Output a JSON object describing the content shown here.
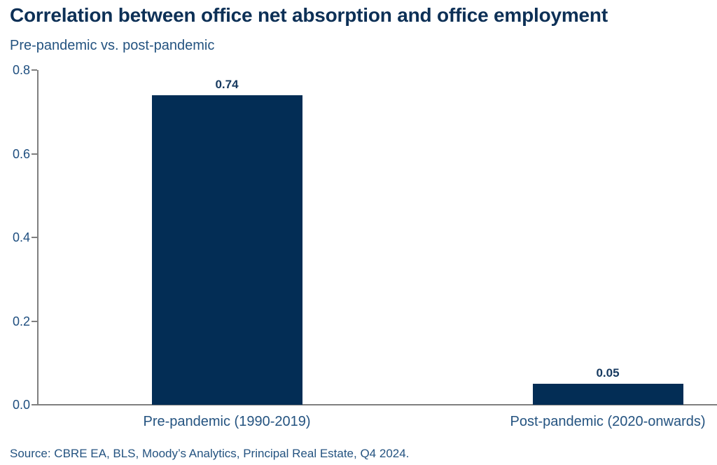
{
  "header": {
    "title": "Correlation between office net absorption and office employment",
    "subtitle": "Pre-pandemic vs. post-pandemic"
  },
  "footer": {
    "source": "Source: CBRE EA, BLS, Moody’s Analytics, Principal Real Estate, Q4 2024."
  },
  "colors": {
    "bar": "#032d55",
    "axis": "#7f7f7f",
    "title_text": "#0d3056",
    "label_text": "#245380",
    "tick_text": "#1e4e7f",
    "value_text": "#16395f"
  },
  "chart_data": {
    "type": "bar",
    "title": "Correlation between office net absorption and office employment",
    "subtitle": "Pre-pandemic vs. post-pandemic",
    "categories": [
      "Pre-pandemic (1990-2019)",
      "Post-pandemic (2020-onwards)"
    ],
    "values": [
      0.74,
      0.05
    ],
    "value_labels": [
      "0.74",
      "0.05"
    ],
    "xlabel": "",
    "ylabel": "",
    "ylim": [
      0,
      0.8
    ],
    "yticks": [
      0.0,
      0.2,
      0.4,
      0.6,
      0.8
    ],
    "ytick_labels": [
      "0.0",
      "0.2",
      "0.4",
      "0.6",
      "0.8"
    ],
    "grid": false,
    "legend": false,
    "source": "Source: CBRE EA, BLS, Moody’s Analytics, Principal Real Estate, Q4 2024."
  }
}
